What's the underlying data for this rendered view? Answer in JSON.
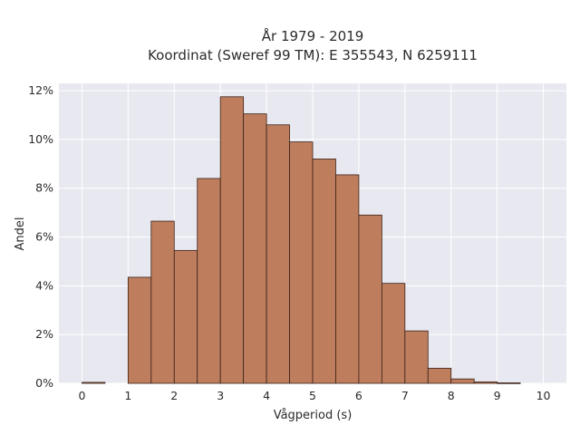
{
  "chart_data": {
    "type": "bar",
    "title": "År 1979 - 2019",
    "subtitle": "Koordinat (Sweref 99 TM): E 355543, N 6259111",
    "xlabel": "Vågperiod (s)",
    "ylabel": "Andel",
    "xlim": [
      -0.5,
      10.5
    ],
    "ylim": [
      0,
      12.3
    ],
    "x_ticks": [
      "0",
      "1",
      "2",
      "3",
      "4",
      "5",
      "6",
      "7",
      "8",
      "9",
      "10"
    ],
    "y_ticks": [
      "0%",
      "2%",
      "4%",
      "6%",
      "8%",
      "10%",
      "12%"
    ],
    "y_unit": "%",
    "bin_width": 0.5,
    "bins": [
      {
        "start": 0.0,
        "value": 0.04
      },
      {
        "start": 0.5,
        "value": 0.0
      },
      {
        "start": 1.0,
        "value": 4.35
      },
      {
        "start": 1.5,
        "value": 6.65
      },
      {
        "start": 2.0,
        "value": 5.45
      },
      {
        "start": 2.5,
        "value": 8.4
      },
      {
        "start": 3.0,
        "value": 11.75
      },
      {
        "start": 3.5,
        "value": 11.05
      },
      {
        "start": 4.0,
        "value": 10.6
      },
      {
        "start": 4.5,
        "value": 9.9
      },
      {
        "start": 5.0,
        "value": 9.2
      },
      {
        "start": 5.5,
        "value": 8.55
      },
      {
        "start": 6.0,
        "value": 6.9
      },
      {
        "start": 6.5,
        "value": 4.1
      },
      {
        "start": 7.0,
        "value": 2.15
      },
      {
        "start": 7.5,
        "value": 0.62
      },
      {
        "start": 8.0,
        "value": 0.18
      },
      {
        "start": 8.5,
        "value": 0.06
      },
      {
        "start": 9.0,
        "value": 0.02
      }
    ],
    "grid": true,
    "colors": {
      "bar_fill": "#bc7754",
      "bar_edge": "#3a2218",
      "plot_bg": "#e8e8f0",
      "grid": "#ffffff"
    }
  }
}
